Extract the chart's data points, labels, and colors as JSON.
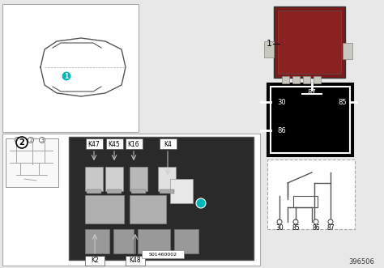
{
  "bg_color": "#e8e8e8",
  "white": "#ffffff",
  "black": "#000000",
  "gray": "#888888",
  "dark_gray": "#444444",
  "teal": "#00b8b8",
  "relay_color": "#8b2020",
  "title_number": "396506",
  "relay_labels_top": [
    "K47",
    "K45",
    "K16",
    "K4"
  ],
  "relay_labels_bottom": [
    "K2",
    "K48"
  ],
  "pin_labels": [
    "30",
    "85",
    "86",
    "87"
  ],
  "part_number": "S01460002"
}
